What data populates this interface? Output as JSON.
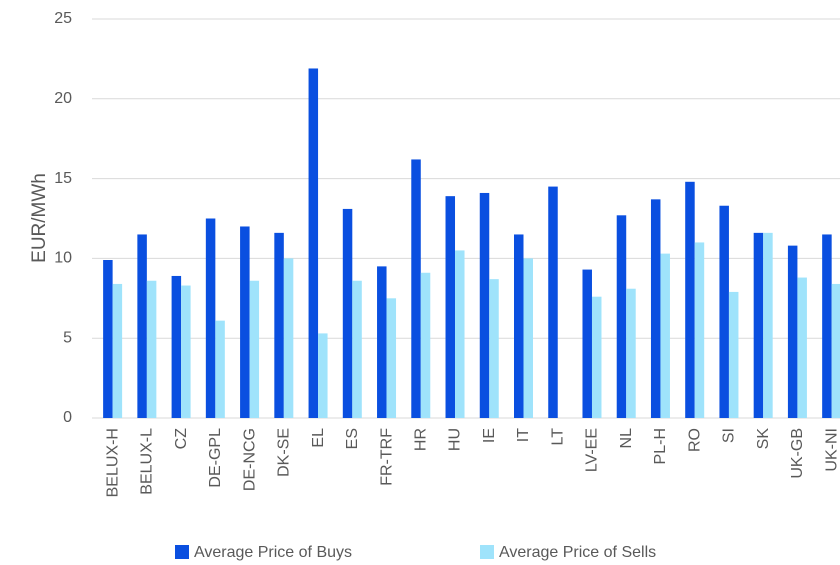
{
  "chart_data": {
    "type": "bar",
    "y_label": "EUR/MWh",
    "categories": [
      "BELUX-H",
      "BELUX-L",
      "CZ",
      "DE-GPL",
      "DE-NCG",
      "DK-SE",
      "EL",
      "ES",
      "FR-TRF",
      "HR",
      "HU",
      "IE",
      "IT",
      "LT",
      "LV-EE",
      "NL",
      "PL-H",
      "RO",
      "SI",
      "SK",
      "UK-GB",
      "UK-NI"
    ],
    "series": [
      {
        "name": "Average Price of Buys",
        "color": "#0a4fe0",
        "values": [
          9.9,
          11.5,
          8.9,
          12.5,
          12.0,
          11.6,
          21.9,
          13.1,
          9.5,
          16.2,
          13.9,
          14.1,
          11.5,
          14.5,
          9.3,
          12.7,
          13.7,
          14.8,
          13.3,
          11.6,
          10.8,
          11.5
        ]
      },
      {
        "name": "Average Price of Sells",
        "color": "#9fe3fb",
        "values": [
          8.4,
          8.6,
          8.3,
          6.1,
          8.6,
          10.0,
          5.3,
          8.6,
          7.5,
          9.1,
          10.5,
          8.7,
          10.0,
          null,
          7.6,
          8.1,
          10.3,
          11.0,
          7.9,
          11.6,
          8.8,
          8.4
        ]
      }
    ],
    "ylim": [
      0,
      25
    ],
    "yticks": [
      0,
      5,
      10,
      15,
      20,
      25
    ],
    "grid": true,
    "legend": "bottom"
  }
}
